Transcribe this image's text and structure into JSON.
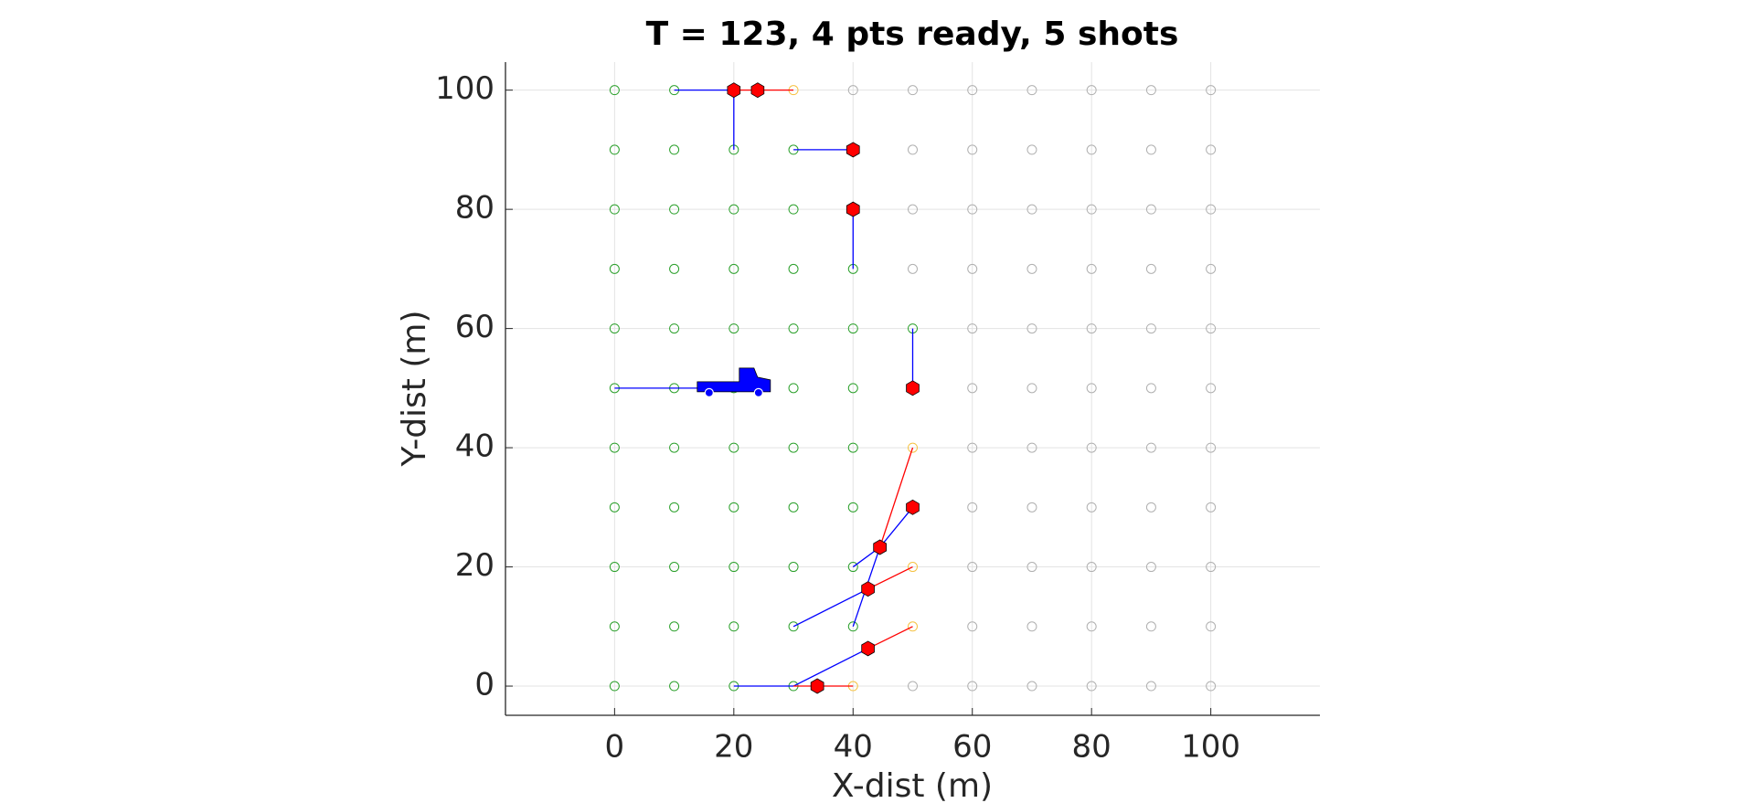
{
  "chart_data": {
    "type": "scatter",
    "title": "T = 123, 4 pts ready, 5 shots",
    "xlabel": "X-dist (m)",
    "ylabel": "Y-dist (m)",
    "xlim": [
      -18.3,
      118.3
    ],
    "ylim": [
      -4.9,
      104.7
    ],
    "xticks": [
      0,
      20,
      40,
      60,
      80,
      100
    ],
    "yticks": [
      0,
      20,
      40,
      60,
      80,
      100
    ],
    "grid": true,
    "series": [
      {
        "color": "#2ca02c",
        "marker": "circle",
        "x": [
          0,
          10,
          0,
          10,
          20,
          30,
          0,
          10,
          20,
          30,
          0,
          10,
          20,
          30,
          40,
          0,
          10,
          20,
          30,
          40,
          50,
          0,
          10,
          20,
          30,
          40,
          0,
          10,
          20,
          30,
          40,
          0,
          10,
          20,
          30,
          40,
          0,
          10,
          20,
          30,
          40,
          0,
          10,
          20,
          30,
          40,
          0,
          10,
          20,
          30
        ],
        "y": [
          100,
          100,
          90,
          90,
          90,
          90,
          80,
          80,
          80,
          80,
          70,
          70,
          70,
          70,
          70,
          60,
          60,
          60,
          60,
          60,
          60,
          50,
          50,
          50,
          50,
          50,
          40,
          40,
          40,
          40,
          40,
          30,
          30,
          30,
          30,
          30,
          20,
          20,
          20,
          20,
          20,
          10,
          10,
          10,
          10,
          10,
          0,
          0,
          0,
          0
        ]
      },
      {
        "color": "#f5c242",
        "marker": "circle",
        "x": [
          30,
          50,
          50,
          50,
          40
        ],
        "y": [
          100,
          40,
          20,
          10,
          0
        ]
      },
      {
        "color": "#b0b0b0",
        "marker": "circle",
        "x": [
          40,
          50,
          60,
          70,
          80,
          90,
          100,
          50,
          60,
          70,
          80,
          90,
          100,
          50,
          60,
          70,
          80,
          90,
          100,
          50,
          60,
          70,
          80,
          90,
          100,
          60,
          70,
          80,
          90,
          100,
          60,
          70,
          80,
          90,
          100,
          60,
          70,
          80,
          90,
          100,
          60,
          70,
          80,
          90,
          100,
          60,
          70,
          80,
          90,
          100,
          60,
          70,
          80,
          90,
          100,
          50,
          60,
          70,
          80,
          90,
          100
        ],
        "y": [
          100,
          100,
          100,
          100,
          100,
          100,
          100,
          90,
          90,
          90,
          90,
          90,
          90,
          80,
          80,
          80,
          80,
          80,
          80,
          70,
          70,
          70,
          70,
          70,
          70,
          60,
          60,
          60,
          60,
          60,
          50,
          50,
          50,
          50,
          50,
          40,
          40,
          40,
          40,
          40,
          30,
          30,
          30,
          30,
          30,
          20,
          20,
          20,
          20,
          20,
          10,
          10,
          10,
          10,
          10,
          0,
          0,
          0,
          0,
          0,
          0
        ]
      }
    ],
    "paths": [
      {
        "color": "#0000ff",
        "x": [
          10,
          20
        ],
        "y": [
          100,
          100
        ]
      },
      {
        "color": "#ff0000",
        "x": [
          20,
          30
        ],
        "y": [
          100,
          100
        ]
      },
      {
        "color": "#0000ff",
        "x": [
          20,
          20
        ],
        "y": [
          100,
          90
        ]
      },
      {
        "color": "#0000ff",
        "x": [
          30,
          40
        ],
        "y": [
          90,
          90
        ]
      },
      {
        "color": "#0000ff",
        "x": [
          40,
          40
        ],
        "y": [
          70,
          80
        ]
      },
      {
        "color": "#0000ff",
        "x": [
          50,
          50
        ],
        "y": [
          60,
          50
        ]
      },
      {
        "color": "#0000ff",
        "x": [
          0,
          20
        ],
        "y": [
          50,
          50
        ]
      },
      {
        "color": "#ff0000",
        "x": [
          44.5,
          50
        ],
        "y": [
          23.3,
          40
        ]
      },
      {
        "color": "#0000ff",
        "x": [
          40,
          44.5,
          50
        ],
        "y": [
          20,
          23.3,
          30
        ]
      },
      {
        "color": "#0000ff",
        "x": [
          40,
          44.5
        ],
        "y": [
          10,
          23.3
        ]
      },
      {
        "color": "#0000ff",
        "x": [
          30,
          42.5
        ],
        "y": [
          10,
          16.3
        ]
      },
      {
        "color": "#ff0000",
        "x": [
          42.5,
          50
        ],
        "y": [
          16.3,
          20
        ]
      },
      {
        "color": "#0000ff",
        "x": [
          30,
          42.5
        ],
        "y": [
          0,
          6.3
        ]
      },
      {
        "color": "#ff0000",
        "x": [
          42.5,
          50
        ],
        "y": [
          6.3,
          10
        ]
      },
      {
        "color": "#0000ff",
        "x": [
          20,
          30
        ],
        "y": [
          0,
          0
        ]
      },
      {
        "color": "#ff0000",
        "x": [
          30,
          40
        ],
        "y": [
          0,
          0
        ]
      }
    ],
    "shots": {
      "color": "#ff0000",
      "marker": "hexagon",
      "x": [
        20,
        24,
        40,
        40,
        50,
        50,
        44.5,
        42.5,
        42.5,
        34
      ],
      "y": [
        100,
        100,
        90,
        80,
        50,
        30,
        23.3,
        16.3,
        6.3,
        0
      ]
    },
    "vehicle": {
      "color": "#0000ff",
      "x": 20,
      "y": 50
    }
  }
}
